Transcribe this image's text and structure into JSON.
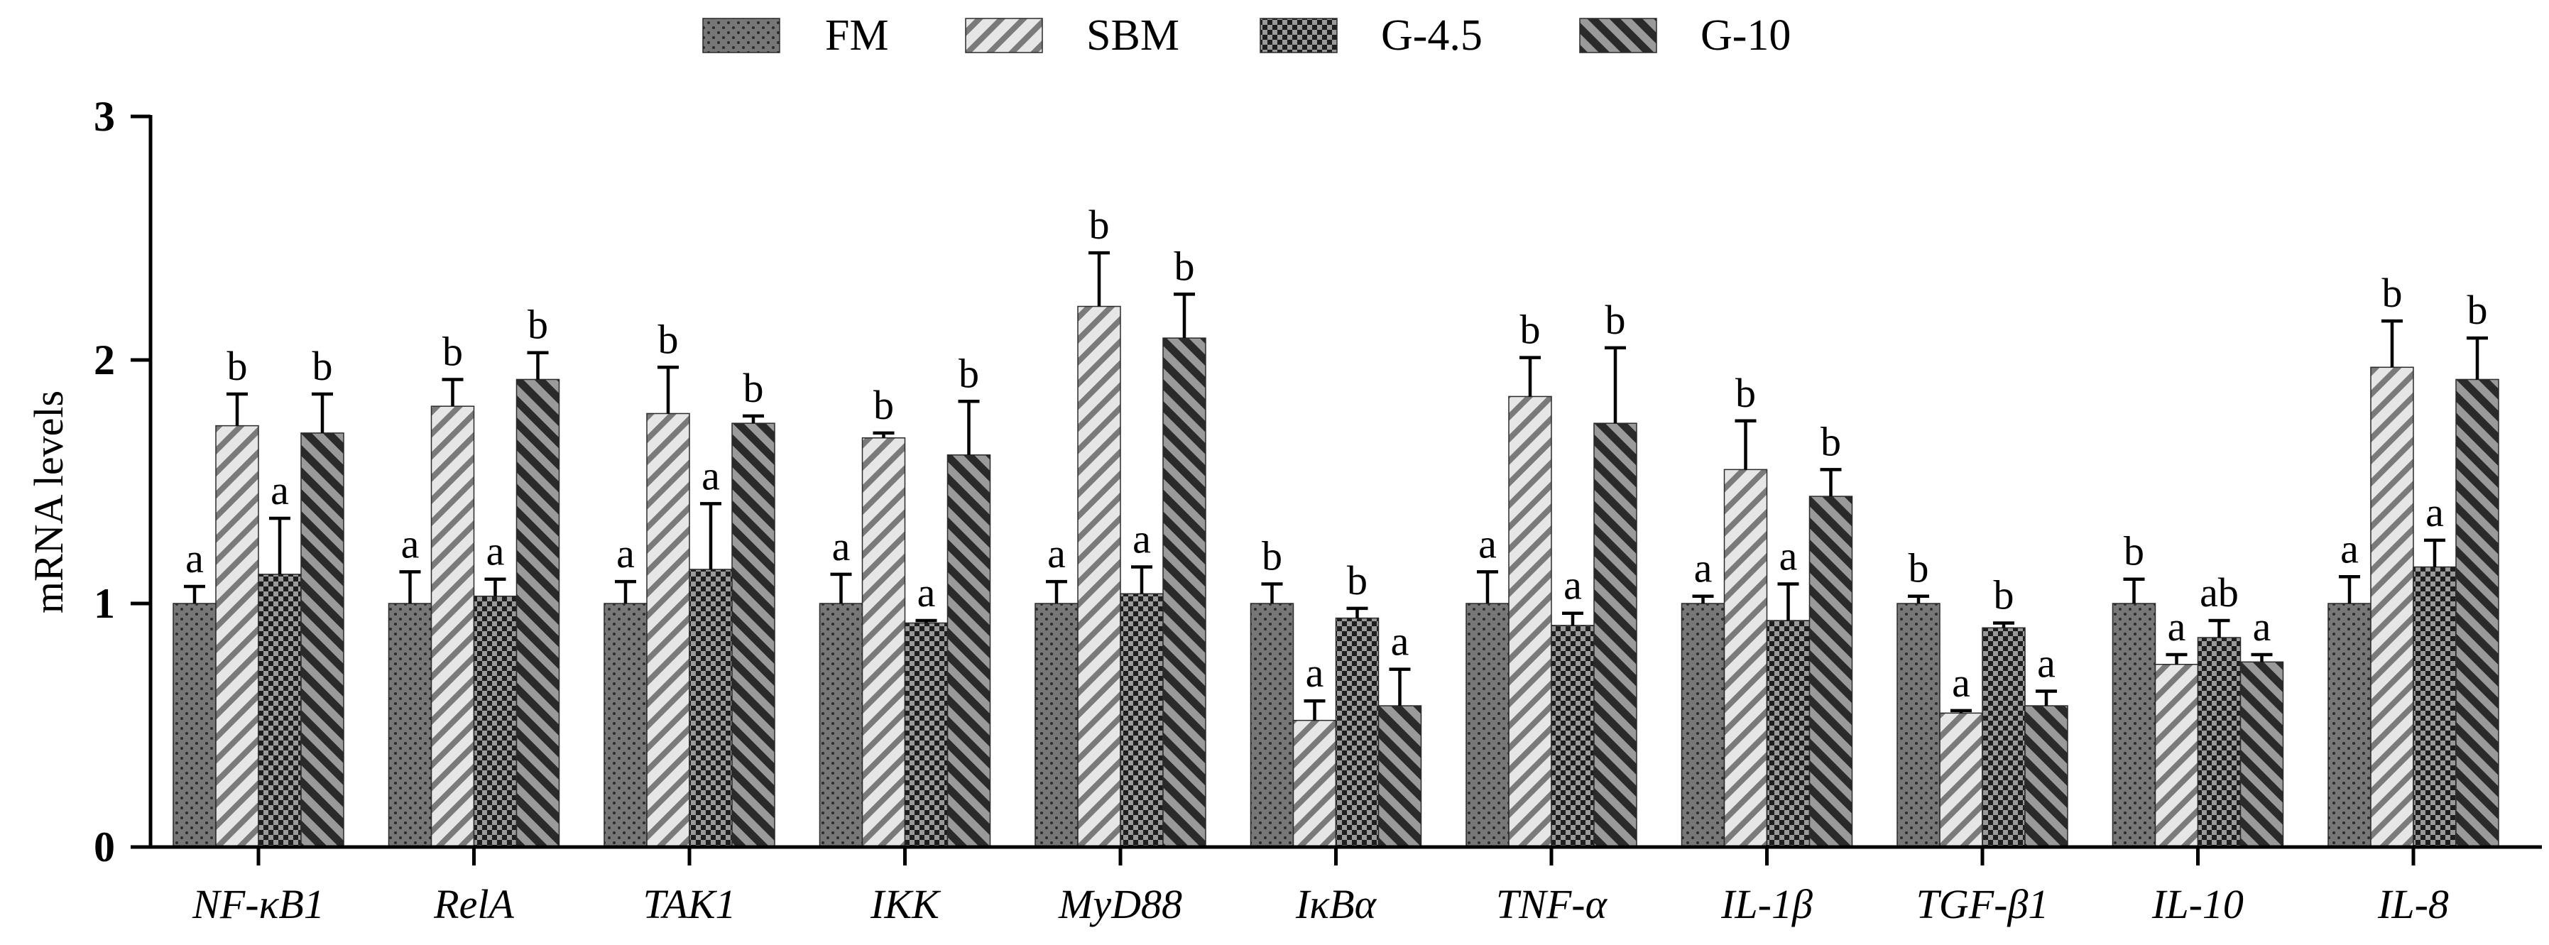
{
  "chart_data": {
    "type": "bar",
    "title": "",
    "xlabel": "",
    "ylabel": "mRNA levels",
    "ylim": [
      0,
      3
    ],
    "yticks": [
      "0",
      "1",
      "2",
      "3"
    ],
    "legend_position": "top-center",
    "grid": false,
    "categories": [
      "NF-κB1",
      "RelA",
      "TAK1",
      "IKK",
      "MyD88",
      "IκBα",
      "TNF-α",
      "IL-1β",
      "TGF-β1",
      "IL-10",
      "IL-8"
    ],
    "series": [
      {
        "name": "FM",
        "pattern": "dots",
        "color": "#777777",
        "values": [
          1.0,
          1.0,
          1.0,
          1.0,
          1.0,
          1.0,
          1.0,
          1.0,
          1.0,
          1.0,
          1.0
        ],
        "errors": [
          0.07,
          0.13,
          0.09,
          0.12,
          0.09,
          0.08,
          0.13,
          0.03,
          0.03,
          0.1,
          0.11
        ],
        "sig": [
          "a",
          "a",
          "a",
          "a",
          "a",
          "b",
          "a",
          "a",
          "b",
          "b",
          "a"
        ]
      },
      {
        "name": "SBM",
        "pattern": "diagonal-light",
        "color": "#e0e0e0",
        "values": [
          1.73,
          1.81,
          1.78,
          1.68,
          2.22,
          0.52,
          1.85,
          1.55,
          0.55,
          0.75,
          1.97
        ],
        "errors": [
          0.13,
          0.11,
          0.19,
          0.02,
          0.22,
          0.08,
          0.16,
          0.2,
          0.01,
          0.04,
          0.19
        ],
        "sig": [
          "b",
          "b",
          "b",
          "b",
          "b",
          "a",
          "b",
          "b",
          "a",
          "a",
          "b"
        ]
      },
      {
        "name": "G-4.5",
        "pattern": "checker",
        "color": "#333333",
        "values": [
          1.12,
          1.03,
          1.14,
          0.92,
          1.04,
          0.94,
          0.91,
          0.93,
          0.9,
          0.86,
          1.15
        ],
        "errors": [
          0.23,
          0.07,
          0.27,
          0.01,
          0.11,
          0.04,
          0.05,
          0.15,
          0.02,
          0.07,
          0.11
        ],
        "sig": [
          "a",
          "a",
          "a",
          "a",
          "a",
          "b",
          "a",
          "a",
          "b",
          "ab",
          "a"
        ]
      },
      {
        "name": "G-10",
        "pattern": "diagonal-dark",
        "color": "#555555",
        "values": [
          1.7,
          1.92,
          1.74,
          1.61,
          2.09,
          0.58,
          1.74,
          1.44,
          0.58,
          0.76,
          1.92
        ],
        "errors": [
          0.16,
          0.11,
          0.03,
          0.22,
          0.18,
          0.15,
          0.31,
          0.11,
          0.06,
          0.03,
          0.17
        ],
        "sig": [
          "b",
          "b",
          "b",
          "b",
          "b",
          "a",
          "b",
          "b",
          "a",
          "a",
          "b"
        ]
      }
    ]
  }
}
